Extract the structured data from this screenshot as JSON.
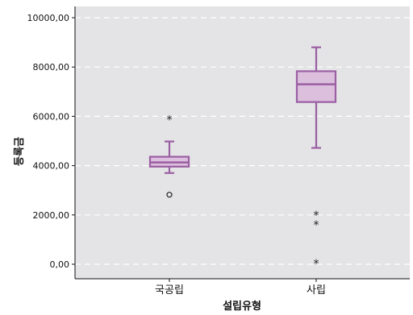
{
  "chart_data": {
    "type": "boxplot",
    "xlabel": "설립유형",
    "ylabel": "등록금",
    "ylim": [
      0,
      10000
    ],
    "yticks": [
      0,
      2000,
      4000,
      6000,
      8000,
      10000
    ],
    "ytick_labels": [
      "0,00",
      "2000,00",
      "4000,00",
      "6000,00",
      "8000,00",
      "10000,00"
    ],
    "grid": true,
    "categories": [
      "국공립",
      "사립"
    ],
    "boxes": [
      {
        "category": "국공립",
        "whisker_low": 3700,
        "q1": 3960,
        "median": 4130,
        "q3": 4360,
        "whisker_high": 4980,
        "outliers": [
          {
            "value": 2820,
            "marker": "circle"
          }
        ],
        "extremes": [
          {
            "value": 5900,
            "marker": "*"
          }
        ]
      },
      {
        "category": "사립",
        "whisker_low": 4720,
        "q1": 6580,
        "median": 7300,
        "q3": 7830,
        "whisker_high": 8800,
        "outliers": [],
        "extremes": [
          {
            "value": 2020,
            "marker": "*"
          },
          {
            "value": 1640,
            "marker": "*"
          },
          {
            "value": 60,
            "marker": "*"
          }
        ]
      }
    ],
    "colors": {
      "plot_bg": "#e4e4e6",
      "box_fill": "#dbbfdc",
      "box_stroke": "#9b5fa3",
      "gridline": "#ffffff",
      "axis": "#111111"
    }
  }
}
